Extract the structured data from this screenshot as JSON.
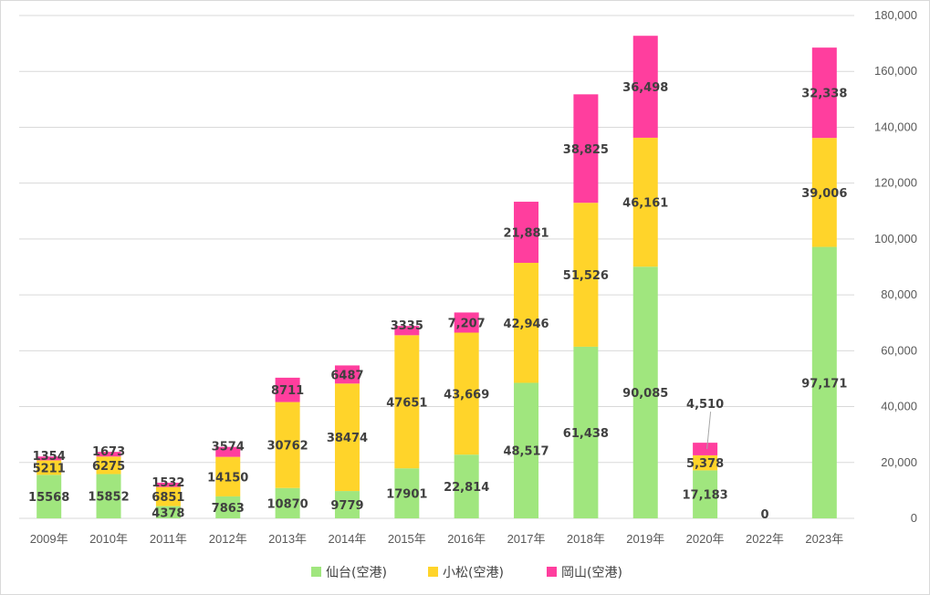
{
  "chart_data": {
    "type": "bar",
    "stacked": true,
    "categories": [
      "2009年",
      "2010年",
      "2011年",
      "2012年",
      "2013年",
      "2014年",
      "2015年",
      "2016年",
      "2017年",
      "2018年",
      "2019年",
      "2020年",
      "2022年",
      "2023年"
    ],
    "series": [
      {
        "name": "仙台(空港)",
        "color": "#a0e67e",
        "values": [
          15568,
          15852,
          4378,
          7863,
          10870,
          9779,
          17901,
          22814,
          48517,
          61438,
          90085,
          17183,
          0,
          97171
        ],
        "labels": [
          "15568",
          "15852",
          "4378",
          "7863",
          "10870",
          "9779",
          "17901",
          "22,814",
          "48,517",
          "61,438",
          "90,085",
          "17,183",
          "0",
          "97,171"
        ]
      },
      {
        "name": "小松(空港)",
        "color": "#ffd42a",
        "values": [
          5211,
          6275,
          6851,
          14150,
          30762,
          38474,
          47651,
          43669,
          42946,
          51526,
          46161,
          5378,
          0,
          39006
        ],
        "labels": [
          "5211",
          "6275",
          "6851",
          "14150",
          "30762",
          "38474",
          "47651",
          "43,669",
          "42,946",
          "51,526",
          "46,161",
          "5,378",
          "",
          "39,006"
        ]
      },
      {
        "name": "岡山(空港)",
        "color": "#ff3e9e",
        "values": [
          1354,
          1673,
          1532,
          3574,
          8711,
          6487,
          3335,
          7207,
          21881,
          38825,
          36498,
          4510,
          0,
          32338
        ],
        "labels": [
          "1354",
          "1673",
          "1532",
          "3574",
          "8711",
          "6487",
          "3335",
          "7,207",
          "21,881",
          "38,825",
          "36,498",
          "4,510",
          "",
          "32,338"
        ]
      }
    ],
    "y_axis": {
      "position": "right",
      "min": 0,
      "max": 180000,
      "step": 20000,
      "tick_labels": [
        "0",
        "20,000",
        "40,000",
        "60,000",
        "80,000",
        "100,000",
        "120,000",
        "140,000",
        "160,000",
        "180,000"
      ]
    },
    "grid": true,
    "legend": "bottom",
    "title": "",
    "xlabel": "",
    "ylabel": ""
  }
}
